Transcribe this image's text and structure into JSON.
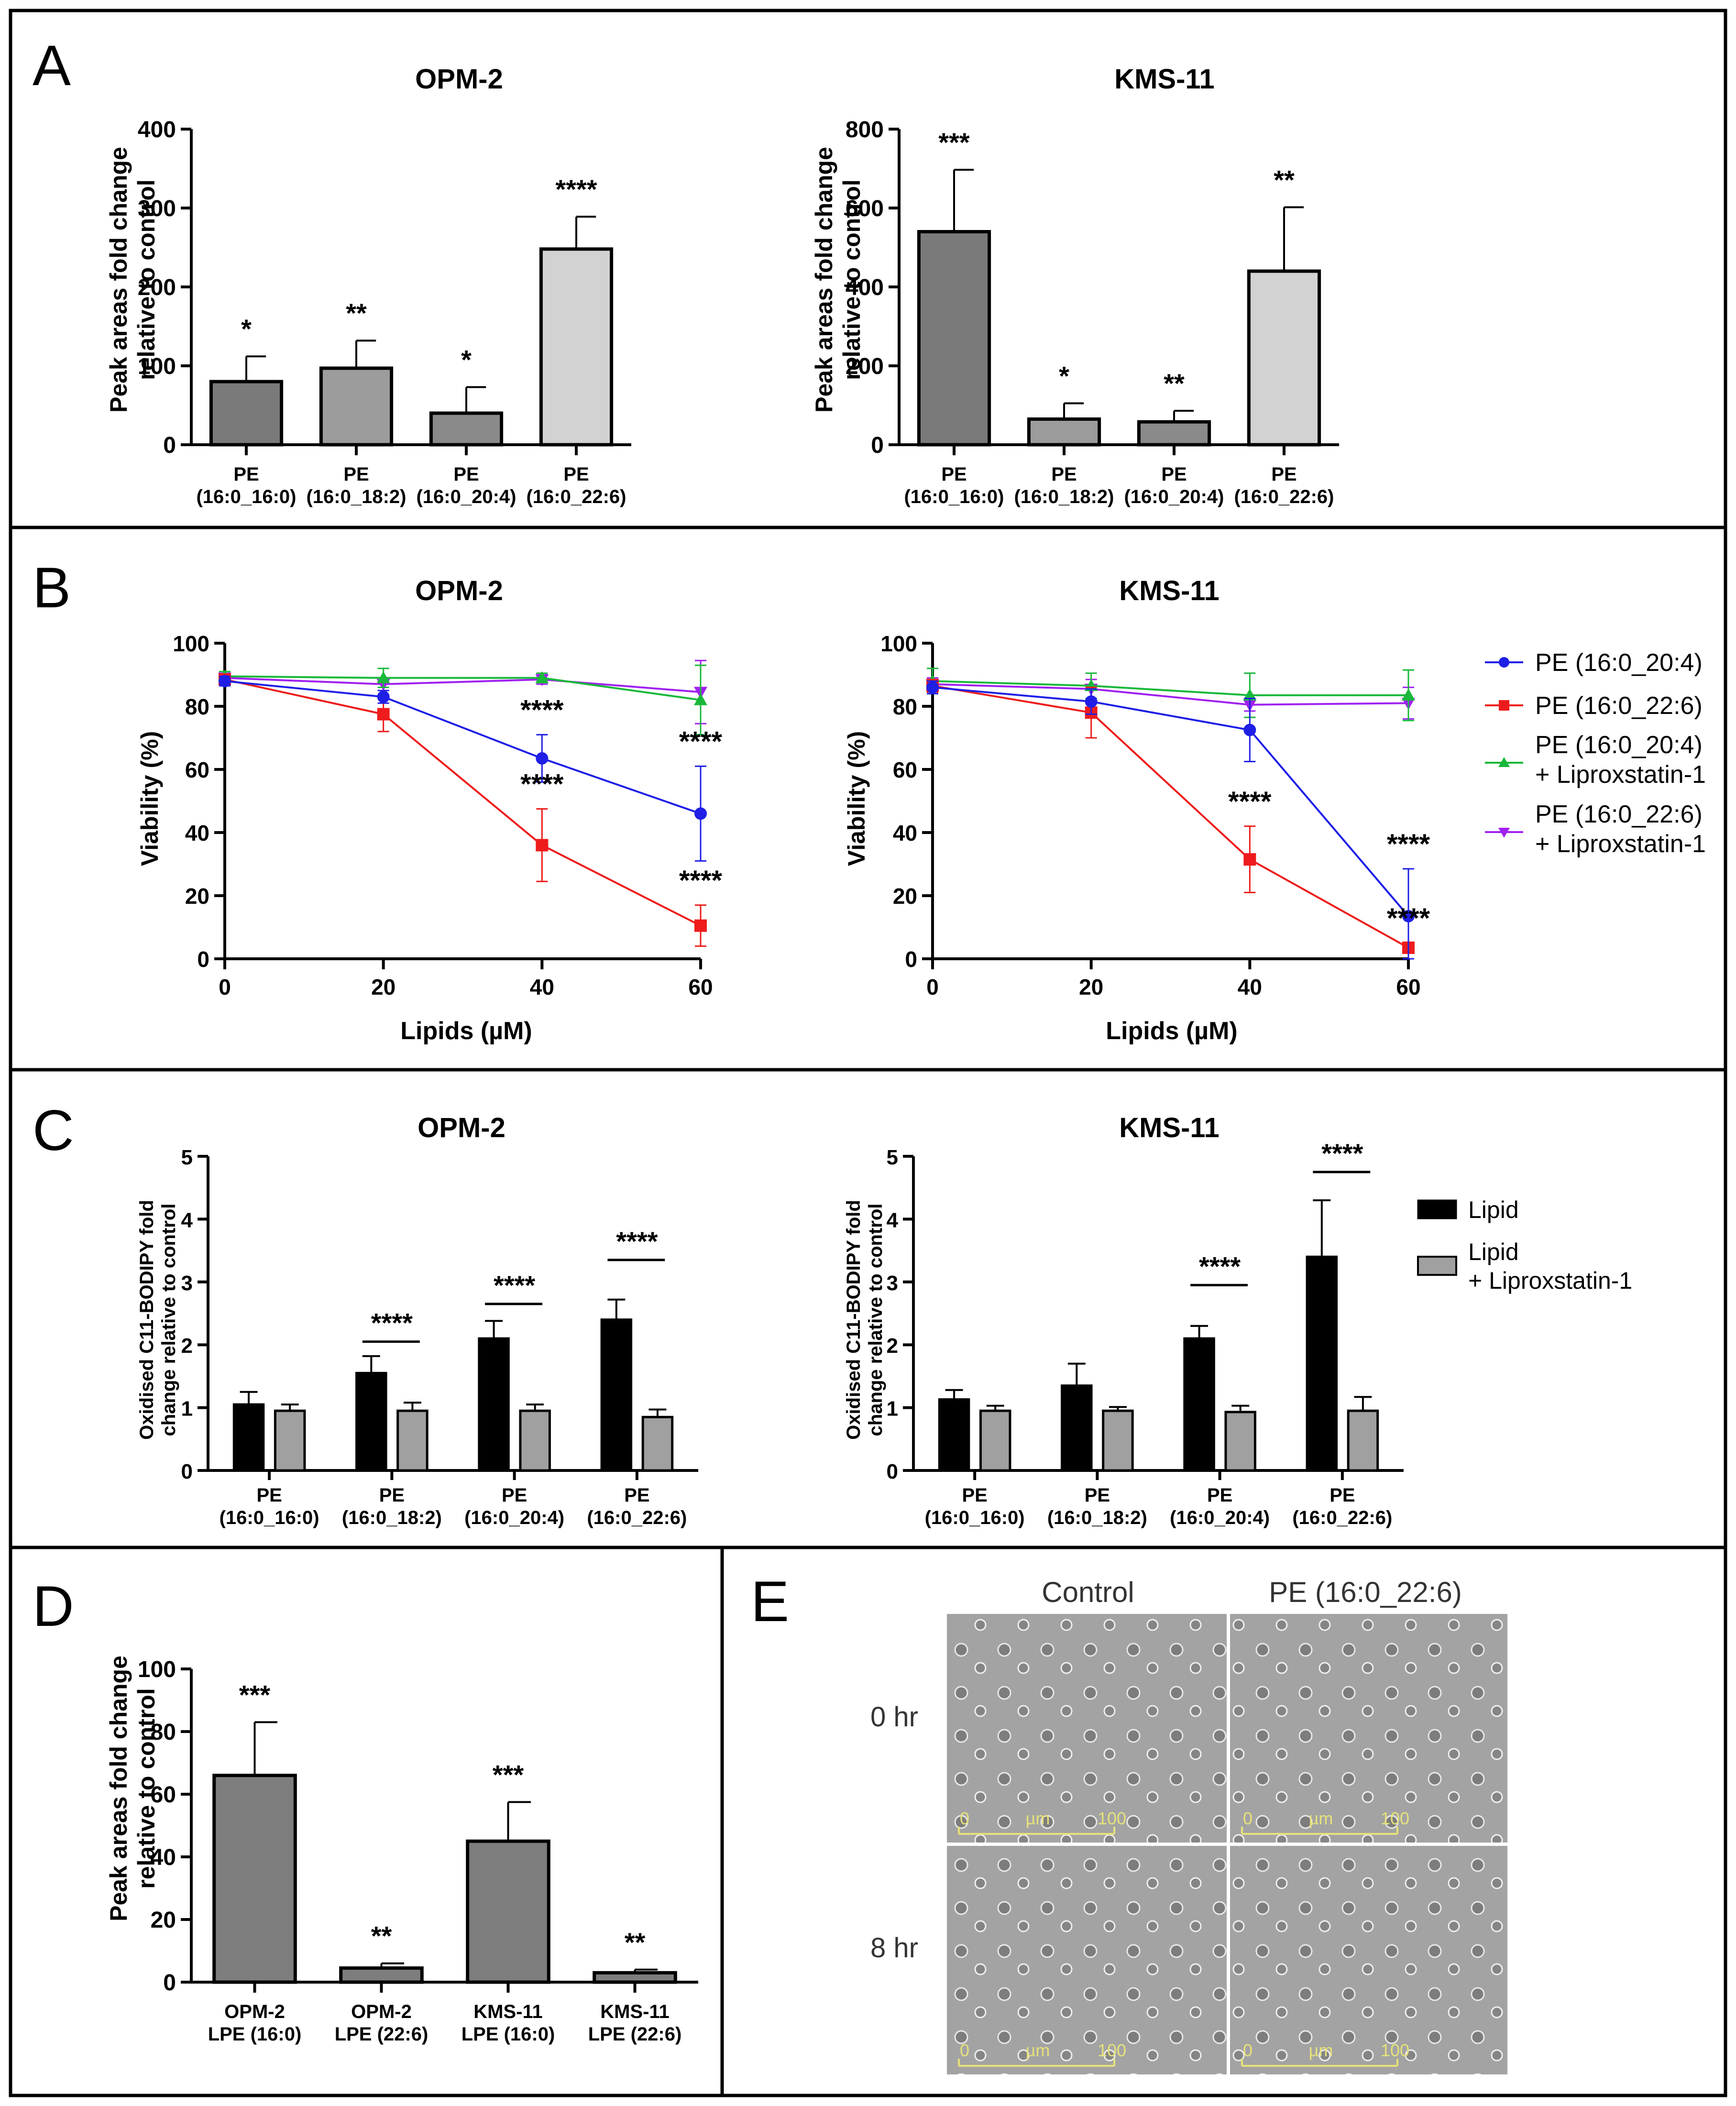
{
  "panels": {
    "A": {
      "label": "A",
      "yaxis_label_line1": "Peak areas fold change",
      "yaxis_label_line2": "relative to control",
      "categories": [
        [
          "PE",
          "(16:0_16:0)"
        ],
        [
          "PE",
          "(16:0_18:2)"
        ],
        [
          "PE",
          "(16:0_20:4)"
        ],
        [
          "PE",
          "(16:0_22:6)"
        ]
      ],
      "colors": [
        "#7a7a7a",
        "#9c9c9c",
        "#8a8a8a",
        "#d2d2d2"
      ]
    },
    "B": {
      "label": "B",
      "xlabel": "Lipids (µM)",
      "ylabel": "Viability (%)",
      "legend": [
        {
          "line1": "PE (16:0_20:4)",
          "line2": "",
          "color": "#1f1fe6",
          "marker": "circle"
        },
        {
          "line1": "PE (16:0_22:6)",
          "line2": "",
          "color": "#ee1c1c",
          "marker": "square"
        },
        {
          "line1": "PE (16:0_20:4)",
          "line2": "+ Liproxstatin-1",
          "color": "#19b83a",
          "marker": "triangle-up"
        },
        {
          "line1": "PE (16:0_22:6)",
          "line2": "+ Liproxstatin-1",
          "color": "#a020f0",
          "marker": "triangle-down"
        }
      ]
    },
    "C": {
      "label": "C",
      "yaxis_label_line1": "Oxidised C11-BODIPY fold",
      "yaxis_label_line2": "change relative to control",
      "categories": [
        [
          "PE",
          "(16:0_16:0)"
        ],
        [
          "PE",
          "(16:0_18:2)"
        ],
        [
          "PE",
          "(16:0_20:4)"
        ],
        [
          "PE",
          "(16:0_22:6)"
        ]
      ],
      "legend": [
        {
          "line1": "Lipid",
          "line2": "",
          "color": "#000000"
        },
        {
          "line1": "Lipid",
          "line2": "+ Liproxstatin-1",
          "color": "#a0a0a0"
        }
      ]
    },
    "D": {
      "label": "D",
      "yaxis_label_line1": "Peak areas fold change",
      "yaxis_label_line2": "relative to control",
      "categories": [
        [
          "OPM-2",
          "LPE (16:0)"
        ],
        [
          "OPM-2",
          "LPE (22:6)"
        ],
        [
          "KMS-11",
          "LPE (16:0)"
        ],
        [
          "KMS-11",
          "LPE (22:6)"
        ]
      ]
    },
    "E": {
      "label": "E",
      "col_labels": [
        "Control",
        "PE (16:0_22:6)"
      ],
      "row_labels": [
        "0 hr",
        "8 hr"
      ],
      "scale_min": "0",
      "scale_unit": "µm",
      "scale_max": "100"
    }
  },
  "chart_data": [
    {
      "id": "A1",
      "type": "bar",
      "title": "OPM-2",
      "ylim": [
        0,
        400
      ],
      "ticks": [
        0,
        100,
        200,
        300,
        400
      ],
      "values": [
        80,
        97,
        40,
        248
      ],
      "errors": [
        32,
        35,
        33,
        41
      ],
      "sig": [
        "*",
        "**",
        "*",
        "****"
      ]
    },
    {
      "id": "A2",
      "type": "bar",
      "title": "KMS-11",
      "ylim": [
        0,
        800
      ],
      "ticks": [
        0,
        200,
        400,
        600,
        800
      ],
      "values": [
        540,
        65,
        58,
        440
      ],
      "errors": [
        157,
        40,
        28,
        162
      ],
      "sig": [
        "***",
        "*",
        "**",
        "**"
      ]
    },
    {
      "id": "B1",
      "type": "line",
      "title": "OPM-2",
      "x": [
        0,
        20,
        40,
        60
      ],
      "ylim": [
        0,
        100
      ],
      "xlim": [
        0,
        60
      ],
      "xticks": [
        0,
        20,
        40,
        60
      ],
      "yticks": [
        0,
        20,
        40,
        60,
        80,
        100
      ],
      "series": [
        {
          "name": "PE (16:0_20:4)",
          "values": [
            88,
            83,
            63.5,
            46
          ],
          "errors": [
            1.5,
            2,
            7.5,
            15
          ]
        },
        {
          "name": "PE (16:0_22:6)",
          "values": [
            88.5,
            77.5,
            36,
            10.5
          ],
          "errors": [
            1.5,
            5.5,
            11.5,
            6.5
          ]
        },
        {
          "name": "PE (16:0_20:4) + Liproxstatin-1",
          "values": [
            89.5,
            89,
            89,
            82
          ],
          "errors": [
            1.5,
            3,
            1.5,
            11
          ]
        },
        {
          "name": "PE (16:0_22:6) + Liproxstatin-1",
          "values": [
            89,
            87,
            88.5,
            84.5
          ],
          "errors": [
            1.5,
            2,
            1.5,
            10
          ]
        }
      ],
      "sig": [
        {
          "x": 40,
          "series": 0,
          "text": "****"
        },
        {
          "x": 40,
          "series": 1,
          "text": "****"
        },
        {
          "x": 60,
          "series": 0,
          "text": "****"
        },
        {
          "x": 60,
          "series": 1,
          "text": "****"
        }
      ]
    },
    {
      "id": "B2",
      "type": "line",
      "title": "KMS-11",
      "x": [
        0,
        20,
        40,
        60
      ],
      "ylim": [
        0,
        100
      ],
      "xlim": [
        0,
        60
      ],
      "xticks": [
        0,
        20,
        40,
        60
      ],
      "yticks": [
        0,
        20,
        40,
        60,
        80,
        100
      ],
      "series": [
        {
          "name": "PE (16:0_20:4)",
          "values": [
            86,
            81.5,
            72.5,
            13.5
          ],
          "errors": [
            2,
            4,
            10,
            15
          ]
        },
        {
          "name": "PE (16:0_22:6)",
          "values": [
            86.5,
            78,
            31.5,
            3.5
          ],
          "errors": [
            2,
            8,
            10.5,
            1.5
          ]
        },
        {
          "name": "PE (16:0_20:4) + Liproxstatin-1",
          "values": [
            88,
            86.5,
            83.5,
            83.5
          ],
          "errors": [
            4,
            4,
            7,
            8
          ]
        },
        {
          "name": "PE (16:0_22:6) + Liproxstatin-1",
          "values": [
            87,
            85.5,
            80.5,
            81
          ],
          "errors": [
            2,
            3,
            2,
            5
          ]
        }
      ],
      "sig": [
        {
          "x": 40,
          "series": 1,
          "text": "****"
        },
        {
          "x": 60,
          "series": 0,
          "text": "****"
        },
        {
          "x": 60,
          "series": 1,
          "text": "****"
        }
      ]
    },
    {
      "id": "C1",
      "type": "bar",
      "title": "OPM-2",
      "ylim": [
        0,
        5
      ],
      "ticks": [
        0,
        1,
        2,
        3,
        4,
        5
      ],
      "series": [
        {
          "name": "Lipid",
          "values": [
            1.05,
            1.55,
            2.1,
            2.4
          ],
          "errors": [
            0.2,
            0.27,
            0.28,
            0.32
          ]
        },
        {
          "name": "Lipid + Liproxstatin-1",
          "values": [
            0.95,
            0.95,
            0.95,
            0.85
          ],
          "errors": [
            0.1,
            0.13,
            0.1,
            0.12
          ]
        }
      ],
      "sig": [
        {
          "group": 1,
          "text": "****",
          "y": 2.05
        },
        {
          "group": 2,
          "text": "****",
          "y": 2.65
        },
        {
          "group": 3,
          "text": "****",
          "y": 3.35
        }
      ]
    },
    {
      "id": "C2",
      "type": "bar",
      "title": "KMS-11",
      "ylim": [
        0,
        5
      ],
      "ticks": [
        0,
        1,
        2,
        3,
        4,
        5
      ],
      "series": [
        {
          "name": "Lipid",
          "values": [
            1.13,
            1.35,
            2.1,
            3.4
          ],
          "errors": [
            0.15,
            0.35,
            0.2,
            0.9
          ]
        },
        {
          "name": "Lipid + Liproxstatin-1",
          "values": [
            0.95,
            0.95,
            0.93,
            0.95
          ],
          "errors": [
            0.08,
            0.06,
            0.1,
            0.22
          ]
        }
      ],
      "sig": [
        {
          "group": 2,
          "text": "****",
          "y": 2.95
        },
        {
          "group": 3,
          "text": "****",
          "y": 4.75
        }
      ]
    },
    {
      "id": "D1",
      "type": "bar",
      "title": "",
      "ylim": [
        0,
        100
      ],
      "ticks": [
        0,
        20,
        40,
        60,
        80,
        100
      ],
      "values": [
        66,
        4.5,
        45,
        3
      ],
      "errors": [
        17,
        1.5,
        12.5,
        1
      ],
      "sig": [
        "***",
        "**",
        "***",
        "**"
      ]
    }
  ]
}
